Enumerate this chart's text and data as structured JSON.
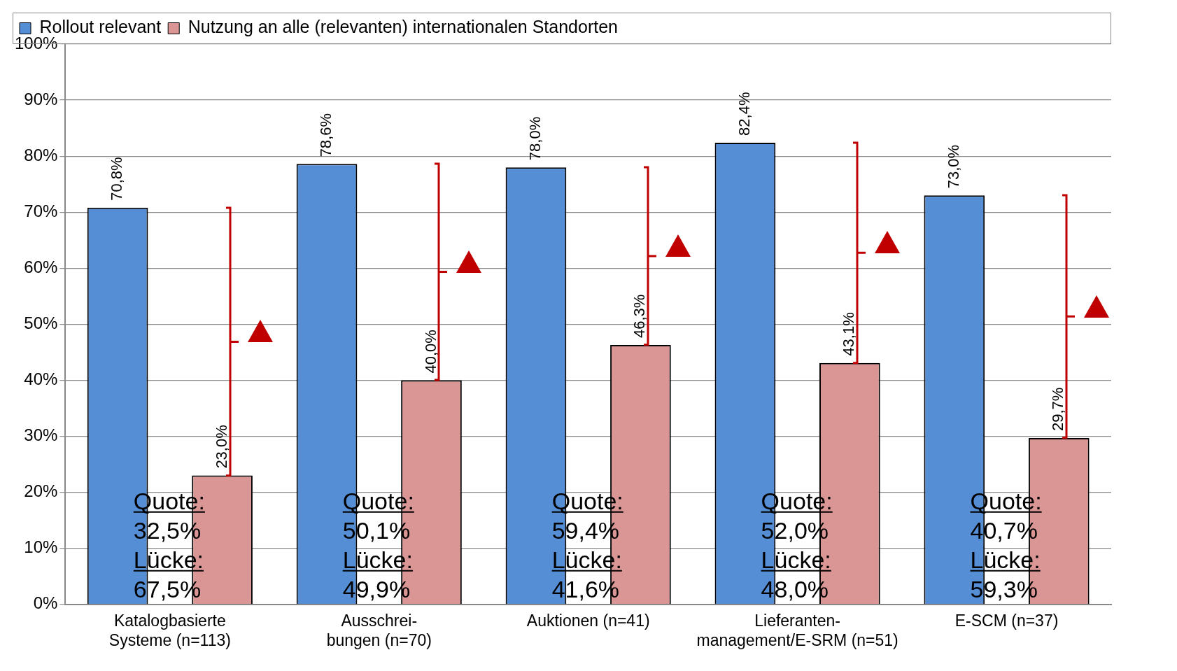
{
  "chart_data": {
    "type": "bar",
    "categories": [
      "Katalogbasierte\nSysteme (n=113)",
      "Ausschrei-\nbungen (n=70)",
      "Auktionen (n=41)",
      "Lieferanten-\nmanagement/E-SRM (n=51)",
      "E-SCM (n=37)"
    ],
    "series": [
      {
        "name": "Rollout relevant",
        "color": "#558ed5",
        "values": [
          70.8,
          78.6,
          78.0,
          82.4,
          73.0
        ],
        "value_labels": [
          "70,8%",
          "78,6%",
          "78,0%",
          "82,4%",
          "73,0%"
        ]
      },
      {
        "name": "Nutzung an alle (relevanten) internationalen Standorten",
        "color": "#d99694",
        "values": [
          23.0,
          40.0,
          46.3,
          43.1,
          29.7
        ],
        "value_labels": [
          "23,0%",
          "40,0%",
          "46,3%",
          "43,1%",
          "29,7%"
        ]
      }
    ],
    "ylim": [
      0,
      100
    ],
    "yticks": [
      {
        "value": 0,
        "label": "0%"
      },
      {
        "value": 10,
        "label": "10%"
      },
      {
        "value": 20,
        "label": "20%"
      },
      {
        "value": 30,
        "label": "30%"
      },
      {
        "value": 40,
        "label": "40%"
      },
      {
        "value": 50,
        "label": "50%"
      },
      {
        "value": 60,
        "label": "60%"
      },
      {
        "value": 70,
        "label": "70%"
      },
      {
        "value": 80,
        "label": "80%"
      },
      {
        "value": 90,
        "label": "90%"
      },
      {
        "value": 100,
        "label": "100%"
      }
    ],
    "grid": "y",
    "legend": "top left",
    "annotations": [
      "Quote:\n32,5%\nLücke:\n67,5%",
      "Quote:\n50,1%\nLücke:\n49,9%",
      "Quote:\n59,4%\nLücke:\n41,6%",
      "Quote:\n52,0%\nLücke:\n48,0%",
      "Quote:\n40,7%\nLücke:\n59,3%"
    ]
  }
}
